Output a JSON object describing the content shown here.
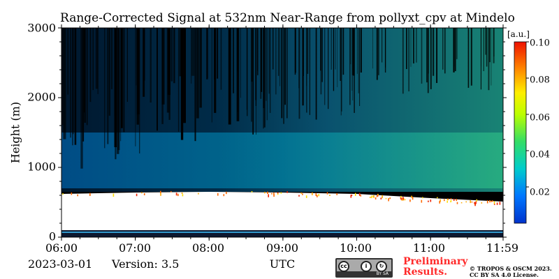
{
  "chart_data": {
    "type": "heatmap",
    "title": "Range-Corrected Signal at 532nm Near-Range from pollyxt_cpv at Mindelo",
    "ylabel": "Height (m)",
    "xlabel": "UTC",
    "x_ticks": [
      "06:00",
      "07:00",
      "08:00",
      "09:00",
      "10:00",
      "11:00",
      "11:59"
    ],
    "y_ticks": [
      "0",
      "1000",
      "2000",
      "3000"
    ],
    "xlim": [
      "06:00",
      "11:59"
    ],
    "ylim": [
      0,
      3000
    ],
    "colorbar": {
      "unit": "[a.u.]",
      "ticks": [
        "0.02",
        "0.04",
        "0.06",
        "0.08",
        "0.10"
      ],
      "range": [
        0.0,
        0.1
      ],
      "colormap": "jet"
    },
    "cloud_base_height_m": [
      {
        "time": "06:00",
        "height": 620
      },
      {
        "time": "07:00",
        "height": 640
      },
      {
        "time": "08:00",
        "height": 650
      },
      {
        "time": "09:00",
        "height": 640
      },
      {
        "time": "10:00",
        "height": 620
      },
      {
        "time": "11:00",
        "height": 560
      },
      {
        "time": "11:59",
        "height": 510
      }
    ],
    "grid": false
  },
  "footer": {
    "date": "2023-03-01",
    "version": "Version: 3.5",
    "preliminary_line1": "Preliminary",
    "preliminary_line2": "Results.",
    "copyright_line1": "© TROPOS & OSCM 2023.",
    "copyright_line2": "CC BY SA 4.0 License.",
    "license_badge_text": "BY    SA"
  },
  "colors": {
    "preliminary": "#ff2a2a",
    "background_signal": "#000000"
  }
}
